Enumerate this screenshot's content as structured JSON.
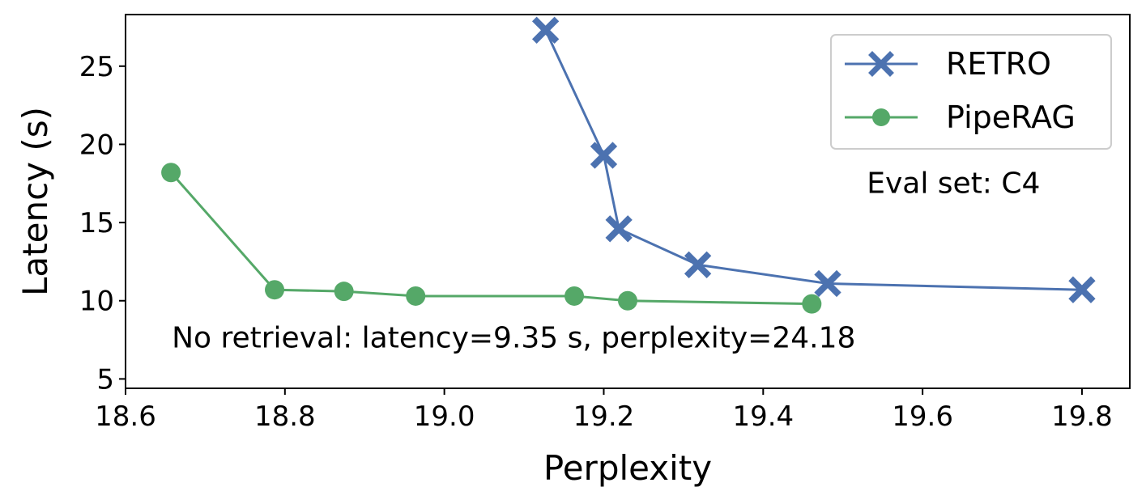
{
  "chart_data": {
    "type": "line",
    "title": "",
    "xlabel": "Perplexity",
    "ylabel": "Latency (s)",
    "xlim": [
      18.6,
      19.86
    ],
    "ylim": [
      4.4,
      28.3
    ],
    "xticks": [
      18.6,
      18.8,
      19.0,
      19.2,
      19.4,
      19.6,
      19.8
    ],
    "xtick_labels": [
      "18.6",
      "18.8",
      "19.0",
      "19.2",
      "19.4",
      "19.6",
      "19.8"
    ],
    "yticks": [
      5,
      10,
      15,
      20,
      25
    ],
    "ytick_labels": [
      "5",
      "10",
      "15",
      "20",
      "25"
    ],
    "grid": false,
    "legend_position": "top-right",
    "series": [
      {
        "name": "RETRO",
        "color": "#4c72b0",
        "marker": "x-icon",
        "x": [
          19.127,
          19.2,
          19.219,
          19.318,
          19.481,
          19.8
        ],
        "y": [
          27.3,
          19.3,
          14.6,
          12.3,
          11.1,
          10.7
        ]
      },
      {
        "name": "PipeRAG",
        "color": "#55a868",
        "marker": "circle-icon",
        "x": [
          18.657,
          18.787,
          18.874,
          18.964,
          19.163,
          19.23,
          19.461
        ],
        "y": [
          18.2,
          10.7,
          10.6,
          10.3,
          10.3,
          10.0,
          9.8
        ]
      }
    ],
    "annotations": [
      {
        "text": "Eval set: C4",
        "x": 19.53,
        "y": 16.9
      },
      {
        "text": "No retrieval: latency=9.35 s, perplexity=24.18",
        "x": 18.658,
        "y": 7.0
      }
    ]
  }
}
